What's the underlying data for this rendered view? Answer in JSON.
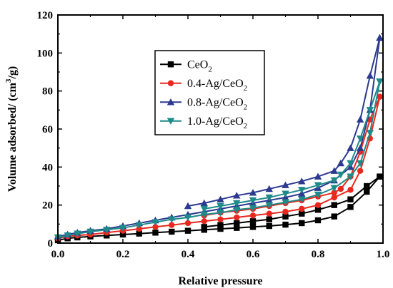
{
  "chart_data": {
    "type": "line",
    "xlabel": "Relative pressure",
    "ylabel": "Volume adsorbed/ (cm³/g)",
    "xlim": [
      0.0,
      1.0
    ],
    "ylim": [
      0,
      120
    ],
    "xticks": [
      0.0,
      0.2,
      0.4,
      0.6,
      0.8,
      1.0
    ],
    "xtick_labels": [
      "0.0",
      "0.2",
      "0.4",
      "0.6",
      "0.8",
      "1.0"
    ],
    "yticks": [
      0,
      20,
      40,
      60,
      80,
      100,
      120
    ],
    "ytick_labels": [
      "0",
      "20",
      "40",
      "60",
      "80",
      "100",
      "120"
    ],
    "grid": false,
    "legend_position": "top-center",
    "series": [
      {
        "name": "CeO2",
        "legend_main": "CeO",
        "legend_sub": "2",
        "legend_tail": "",
        "color": "#000000",
        "marker": "square",
        "adsorption": [
          [
            0.0,
            1.5
          ],
          [
            0.03,
            2.5
          ],
          [
            0.06,
            3.0
          ],
          [
            0.1,
            3.5
          ],
          [
            0.15,
            4.0
          ],
          [
            0.2,
            4.5
          ],
          [
            0.25,
            5.0
          ],
          [
            0.3,
            5.5
          ],
          [
            0.35,
            6.0
          ],
          [
            0.4,
            6.5
          ],
          [
            0.45,
            7.0
          ],
          [
            0.5,
            7.5
          ],
          [
            0.55,
            8.0
          ],
          [
            0.6,
            8.5
          ],
          [
            0.65,
            9.0
          ],
          [
            0.7,
            9.7
          ],
          [
            0.75,
            10.5
          ],
          [
            0.8,
            12.0
          ],
          [
            0.85,
            14.0
          ],
          [
            0.9,
            19.0
          ],
          [
            0.95,
            27.0
          ],
          [
            0.99,
            35.0
          ]
        ],
        "desorption": [
          [
            0.99,
            35.0
          ],
          [
            0.95,
            30.0
          ],
          [
            0.9,
            23.0
          ],
          [
            0.85,
            20.0
          ],
          [
            0.8,
            17.5
          ],
          [
            0.75,
            15.5
          ],
          [
            0.7,
            14.0
          ],
          [
            0.65,
            12.5
          ],
          [
            0.6,
            11.5
          ],
          [
            0.55,
            10.5
          ],
          [
            0.5,
            9.5
          ],
          [
            0.45,
            8.5
          ]
        ]
      },
      {
        "name": "0.4-Ag/CeO2",
        "legend_main": "0.4-Ag/CeO",
        "legend_sub": "2",
        "legend_tail": "",
        "color": "#e8281e",
        "marker": "circle",
        "adsorption": [
          [
            0.0,
            2.5
          ],
          [
            0.03,
            3.5
          ],
          [
            0.06,
            4.0
          ],
          [
            0.1,
            4.5
          ],
          [
            0.15,
            5.5
          ],
          [
            0.2,
            6.5
          ],
          [
            0.25,
            7.5
          ],
          [
            0.3,
            8.5
          ],
          [
            0.35,
            9.5
          ],
          [
            0.4,
            10.5
          ],
          [
            0.45,
            11.5
          ],
          [
            0.5,
            12.5
          ],
          [
            0.55,
            13.5
          ],
          [
            0.6,
            14.5
          ],
          [
            0.65,
            15.5
          ],
          [
            0.7,
            16.5
          ],
          [
            0.75,
            18.0
          ],
          [
            0.8,
            20.0
          ],
          [
            0.85,
            24.0
          ],
          [
            0.9,
            28.0
          ],
          [
            0.93,
            38.0
          ],
          [
            0.96,
            55.0
          ],
          [
            0.99,
            77.0
          ]
        ],
        "desorption": [
          [
            0.99,
            77.0
          ],
          [
            0.96,
            65.0
          ],
          [
            0.93,
            48.0
          ],
          [
            0.9,
            35.0
          ],
          [
            0.87,
            28.5
          ],
          [
            0.85,
            26.5
          ],
          [
            0.8,
            24.5
          ],
          [
            0.75,
            22.5
          ],
          [
            0.7,
            21.0
          ],
          [
            0.65,
            19.5
          ],
          [
            0.6,
            18.0
          ],
          [
            0.55,
            17.0
          ],
          [
            0.5,
            16.0
          ],
          [
            0.45,
            14.5
          ]
        ]
      },
      {
        "name": "0.8-Ag/CeO2",
        "legend_main": "0.8-Ag/CeO",
        "legend_sub": "2",
        "legend_tail": "",
        "color": "#2b3990",
        "marker": "triangle-up",
        "adsorption": [
          [
            0.0,
            3.5
          ],
          [
            0.03,
            4.5
          ],
          [
            0.06,
            5.5
          ],
          [
            0.1,
            6.5
          ],
          [
            0.15,
            7.5
          ],
          [
            0.2,
            9.0
          ],
          [
            0.25,
            10.5
          ],
          [
            0.3,
            12.0
          ],
          [
            0.35,
            13.5
          ],
          [
            0.4,
            15.0
          ],
          [
            0.45,
            16.5
          ],
          [
            0.5,
            18.0
          ],
          [
            0.55,
            19.5
          ],
          [
            0.6,
            21.0
          ],
          [
            0.65,
            22.5
          ],
          [
            0.7,
            24.0
          ],
          [
            0.75,
            26.0
          ],
          [
            0.8,
            29.0
          ],
          [
            0.85,
            33.0
          ],
          [
            0.9,
            40.0
          ],
          [
            0.93,
            50.0
          ],
          [
            0.96,
            70.0
          ],
          [
            0.99,
            108.0
          ]
        ],
        "desorption": [
          [
            0.99,
            108.0
          ],
          [
            0.96,
            88.0
          ],
          [
            0.93,
            65.0
          ],
          [
            0.9,
            50.0
          ],
          [
            0.87,
            42.0
          ],
          [
            0.85,
            38.0
          ],
          [
            0.8,
            35.0
          ],
          [
            0.75,
            32.5
          ],
          [
            0.7,
            30.5
          ],
          [
            0.65,
            28.5
          ],
          [
            0.6,
            26.5
          ],
          [
            0.55,
            25.0
          ],
          [
            0.5,
            23.0
          ],
          [
            0.45,
            21.0
          ],
          [
            0.4,
            19.5
          ]
        ]
      },
      {
        "name": "1.0-Ag/CeO2",
        "legend_main": "1.0-Ag/CeO",
        "legend_sub": "2",
        "legend_tail": "",
        "color": "#1f8a8a",
        "marker": "triangle-down",
        "adsorption": [
          [
            0.0,
            3.0
          ],
          [
            0.03,
            4.0
          ],
          [
            0.06,
            5.0
          ],
          [
            0.1,
            6.0
          ],
          [
            0.15,
            7.0
          ],
          [
            0.2,
            8.0
          ],
          [
            0.25,
            9.5
          ],
          [
            0.3,
            11.0
          ],
          [
            0.35,
            12.5
          ],
          [
            0.4,
            13.5
          ],
          [
            0.45,
            15.0
          ],
          [
            0.5,
            16.0
          ],
          [
            0.55,
            17.5
          ],
          [
            0.6,
            18.5
          ],
          [
            0.65,
            20.0
          ],
          [
            0.7,
            21.5
          ],
          [
            0.75,
            23.0
          ],
          [
            0.8,
            25.5
          ],
          [
            0.85,
            29.0
          ],
          [
            0.9,
            35.0
          ],
          [
            0.93,
            42.0
          ],
          [
            0.96,
            58.0
          ],
          [
            0.99,
            85.0
          ]
        ],
        "desorption": [
          [
            0.99,
            85.0
          ],
          [
            0.96,
            70.0
          ],
          [
            0.93,
            55.0
          ],
          [
            0.9,
            42.0
          ],
          [
            0.87,
            36.0
          ],
          [
            0.85,
            33.0
          ],
          [
            0.8,
            30.5
          ],
          [
            0.75,
            28.0
          ],
          [
            0.7,
            26.0
          ],
          [
            0.65,
            24.0
          ],
          [
            0.6,
            22.5
          ],
          [
            0.55,
            21.0
          ],
          [
            0.5,
            19.5
          ],
          [
            0.45,
            18.0
          ]
        ]
      }
    ]
  }
}
